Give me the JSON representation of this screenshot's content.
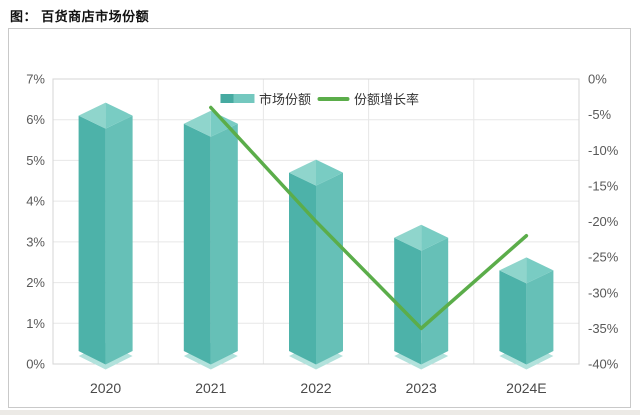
{
  "figure": {
    "title": "图： 百货商店市场份额"
  },
  "chart_data": {
    "type": "bar",
    "subtype": "3d-bar + line combo, dual y-axis",
    "title": "百货商店市场份额",
    "categories": [
      "2020",
      "2021",
      "2022",
      "2023",
      "2024E"
    ],
    "series": [
      {
        "name": "市场份额",
        "type": "bar",
        "axis": "left",
        "unit": "%",
        "values": [
          6.1,
          5.9,
          4.7,
          3.1,
          2.3
        ]
      },
      {
        "name": "份额增长率",
        "type": "line",
        "axis": "right",
        "unit": "%",
        "values": [
          null,
          -4,
          -20,
          -35,
          -22
        ]
      }
    ],
    "left_axis": {
      "min": 0,
      "max": 7,
      "tick_step": 1,
      "tick_labels": [
        "7%",
        "6%",
        "5%",
        "4%",
        "3%",
        "2%",
        "1%",
        "0%"
      ]
    },
    "right_axis": {
      "min": -40,
      "max": 0,
      "tick_step": 5,
      "tick_labels": [
        "0%",
        "-5%",
        "-10%",
        "-15%",
        "-20%",
        "-25%",
        "-30%",
        "-35%",
        "-40%"
      ]
    },
    "legend_position": "top-center",
    "grid": "on",
    "colors": {
      "bar_face_left": "#4db2a9",
      "bar_face_right": "#66c0b7",
      "bar_top_left": "#8fd5cc",
      "bar_top_right": "#79ccc3",
      "bar_floor": "#b2e2dc",
      "line": "#5bad4a",
      "grid_line": "#e7e7e7",
      "plot_border": "#d5d5d5",
      "axis_text": "#595959",
      "x_axis_text": "#4a4a4a",
      "legend_text": "#333333",
      "figure_border": "#c9c9c9",
      "page_strip": "#eceae6"
    }
  }
}
